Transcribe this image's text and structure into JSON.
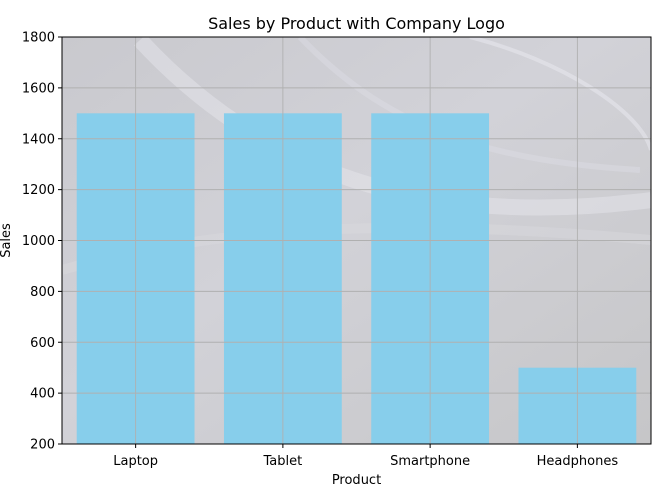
{
  "chart_data": {
    "type": "bar",
    "title": "Sales by Product with Company Logo",
    "xlabel": "Product",
    "ylabel": "Sales",
    "categories": [
      "Laptop",
      "Tablet",
      "Smartphone",
      "Headphones"
    ],
    "values": [
      1500,
      1500,
      1500,
      500
    ],
    "ylim": [
      200,
      1800
    ],
    "yticks": [
      200,
      400,
      600,
      800,
      1000,
      1200,
      1400,
      1600,
      1800
    ],
    "grid": true,
    "bar_color": "#87ceeb",
    "grid_color": "#b0b0b0",
    "background_image": "company-logo-watermark"
  }
}
